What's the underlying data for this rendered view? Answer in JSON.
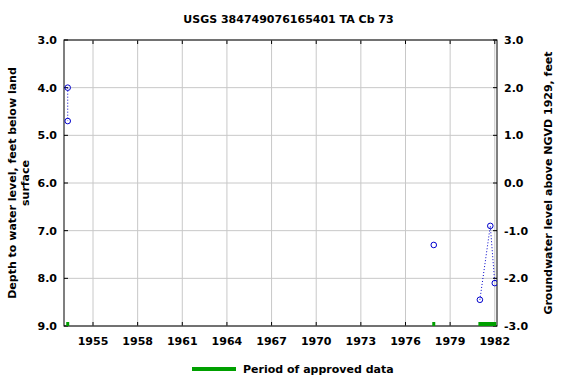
{
  "chart_data": {
    "type": "line",
    "title": "USGS 384749076165401 TA Cb  73",
    "y_label": "Depth to water level, feet below land surface",
    "y2_label": "Groundwater level above NGVD 1929, feet",
    "xlim": [
      1953.05,
      1982.15
    ],
    "xticks": [
      1955,
      1958,
      1961,
      1964,
      1967,
      1970,
      1973,
      1976,
      1979,
      1982
    ],
    "ylim": [
      9.0,
      3.0
    ],
    "yticks": [
      {
        "value": 3.0,
        "label": "3.0"
      },
      {
        "value": 4.0,
        "label": "4.0"
      },
      {
        "value": 5.0,
        "label": "5.0"
      },
      {
        "value": 6.0,
        "label": "6.0"
      },
      {
        "value": 7.0,
        "label": "7.0"
      },
      {
        "value": 8.0,
        "label": "8.0"
      },
      {
        "value": 9.0,
        "label": "9.0"
      }
    ],
    "y2lim": [
      -3.0,
      3.0
    ],
    "y2ticks": [
      {
        "value": 3.0,
        "label": "3.0"
      },
      {
        "value": 2.0,
        "label": "2.0"
      },
      {
        "value": 1.0,
        "label": "1.0"
      },
      {
        "value": 0.0,
        "label": "0.0"
      },
      {
        "value": -1.0,
        "label": "-1.0"
      },
      {
        "value": -2.0,
        "label": "-2.0"
      },
      {
        "value": -3.0,
        "label": "-3.0"
      }
    ],
    "grid": true,
    "legend": "bottom",
    "series": [
      {
        "name": "Depth to water level",
        "type": "line",
        "color": "#0000cc",
        "marker": "circle",
        "line_style": "dotted",
        "x": [
          1953.3,
          1953.3,
          null,
          1977.9,
          null,
          1981.0,
          1981.7,
          1982.0
        ],
        "values": [
          4.0,
          4.7,
          null,
          7.3,
          null,
          8.45,
          6.9,
          8.1
        ]
      },
      {
        "name": "Period of approved data",
        "type": "period",
        "color": "#00a000",
        "start": [
          1953.2,
          1977.8,
          1980.9
        ],
        "end": [
          1953.4,
          1978.0,
          1982.1
        ]
      }
    ]
  }
}
